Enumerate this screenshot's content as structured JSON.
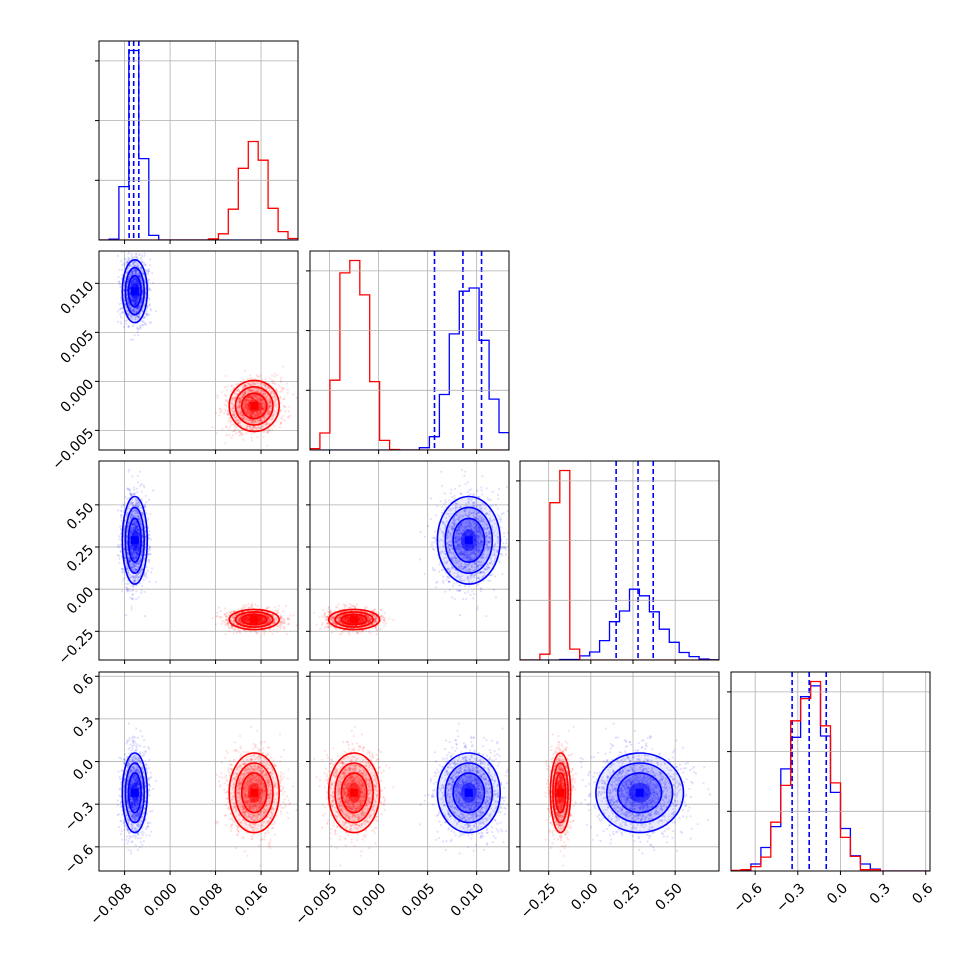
{
  "chart_data": {
    "type": "scatter",
    "title": "",
    "grid": true,
    "colors": {
      "series_a": "#0000ff",
      "series_b": "#ff0000",
      "grid": "#b0b0b0"
    },
    "parameters": [
      {
        "range": [
          -0.0125,
          0.0225
        ],
        "ticks": [
          -0.008,
          0.0,
          0.008,
          0.016
        ],
        "tick_labels": [
          "−0.008",
          "0.000",
          "0.008",
          "0.016"
        ]
      },
      {
        "range": [
          -0.007,
          0.0133
        ],
        "ticks": [
          -0.005,
          0.0,
          0.005,
          0.01
        ],
        "tick_labels": [
          "−0.005",
          "0.000",
          "0.005",
          "0.010"
        ]
      },
      {
        "range": [
          -0.42,
          0.76
        ],
        "ticks": [
          -0.25,
          0.0,
          0.25,
          0.5
        ],
        "tick_labels": [
          "−0.25",
          "0.00",
          "0.25",
          "0.50"
        ]
      },
      {
        "range": [
          -0.77,
          0.63
        ],
        "ticks": [
          -0.6,
          -0.3,
          0.0,
          0.3,
          0.6
        ],
        "tick_labels": [
          "−0.6",
          "−0.3",
          "0.0",
          "0.3",
          "0.6"
        ]
      }
    ],
    "series": [
      {
        "key": "series_a",
        "means": [
          -0.0062,
          0.0092,
          0.29,
          -0.22
        ],
        "sds": [
          0.0011,
          0.0016,
          0.13,
          0.14
        ],
        "quantile_lines": [
          [
            -0.0072,
            -0.0064,
            -0.0055
          ],
          [
            0.0057,
            0.0086,
            0.0105
          ],
          [
            0.15,
            0.28,
            0.37
          ],
          [
            -0.34,
            -0.22,
            -0.1
          ]
        ]
      },
      {
        "key": "series_b",
        "means": [
          0.0148,
          -0.0025,
          -0.18,
          -0.22
        ],
        "sds": [
          0.0022,
          0.0013,
          0.03,
          0.14
        ],
        "quantile_lines": null
      }
    ]
  }
}
